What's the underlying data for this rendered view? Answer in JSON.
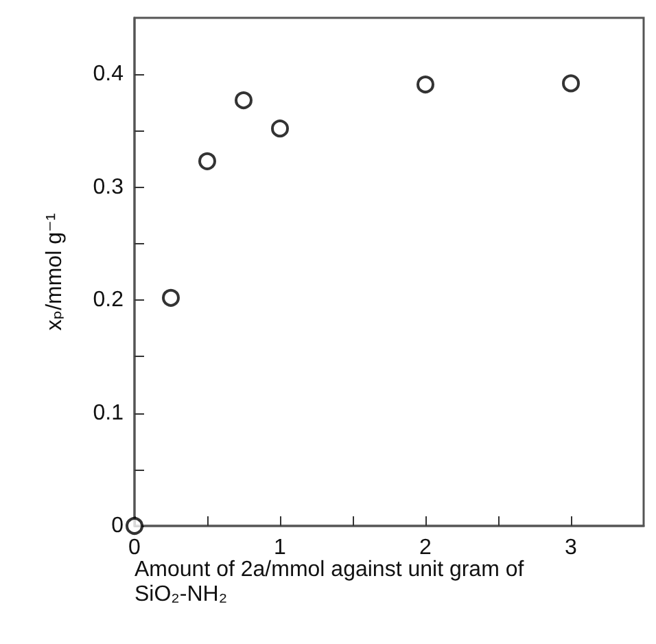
{
  "chart_data": {
    "type": "scatter",
    "xlabel": "Amount of 2a/mmol against unit gram of SiO₂-NH₂",
    "ylabel": "xₚ/mmol g⁻¹",
    "x": [
      0,
      0.25,
      0.5,
      0.75,
      1,
      2,
      3
    ],
    "series": [
      {
        "color": "#000000",
        "values": [
          0,
          0.202,
          0.323,
          0.377,
          0.352,
          0.391,
          0.392
        ]
      }
    ],
    "xlim": [
      0,
      3.5
    ],
    "xticks": [
      0,
      {
        "value": 0.5,
        "label": null
      },
      1,
      {
        "value": 1.5,
        "label": null
      },
      2,
      {
        "value": 2.5,
        "label": null
      },
      3
    ],
    "ylim": [
      0,
      0.45
    ],
    "yticks": [
      0,
      {
        "value": 0.05,
        "label": null
      },
      0.1,
      {
        "value": 0.15,
        "label": null
      },
      0.2,
      {
        "value": 0.25,
        "label": null
      },
      0.3,
      {
        "value": 0.35,
        "label": null
      },
      0.4
    ],
    "marker": "circle",
    "grid": false
  }
}
